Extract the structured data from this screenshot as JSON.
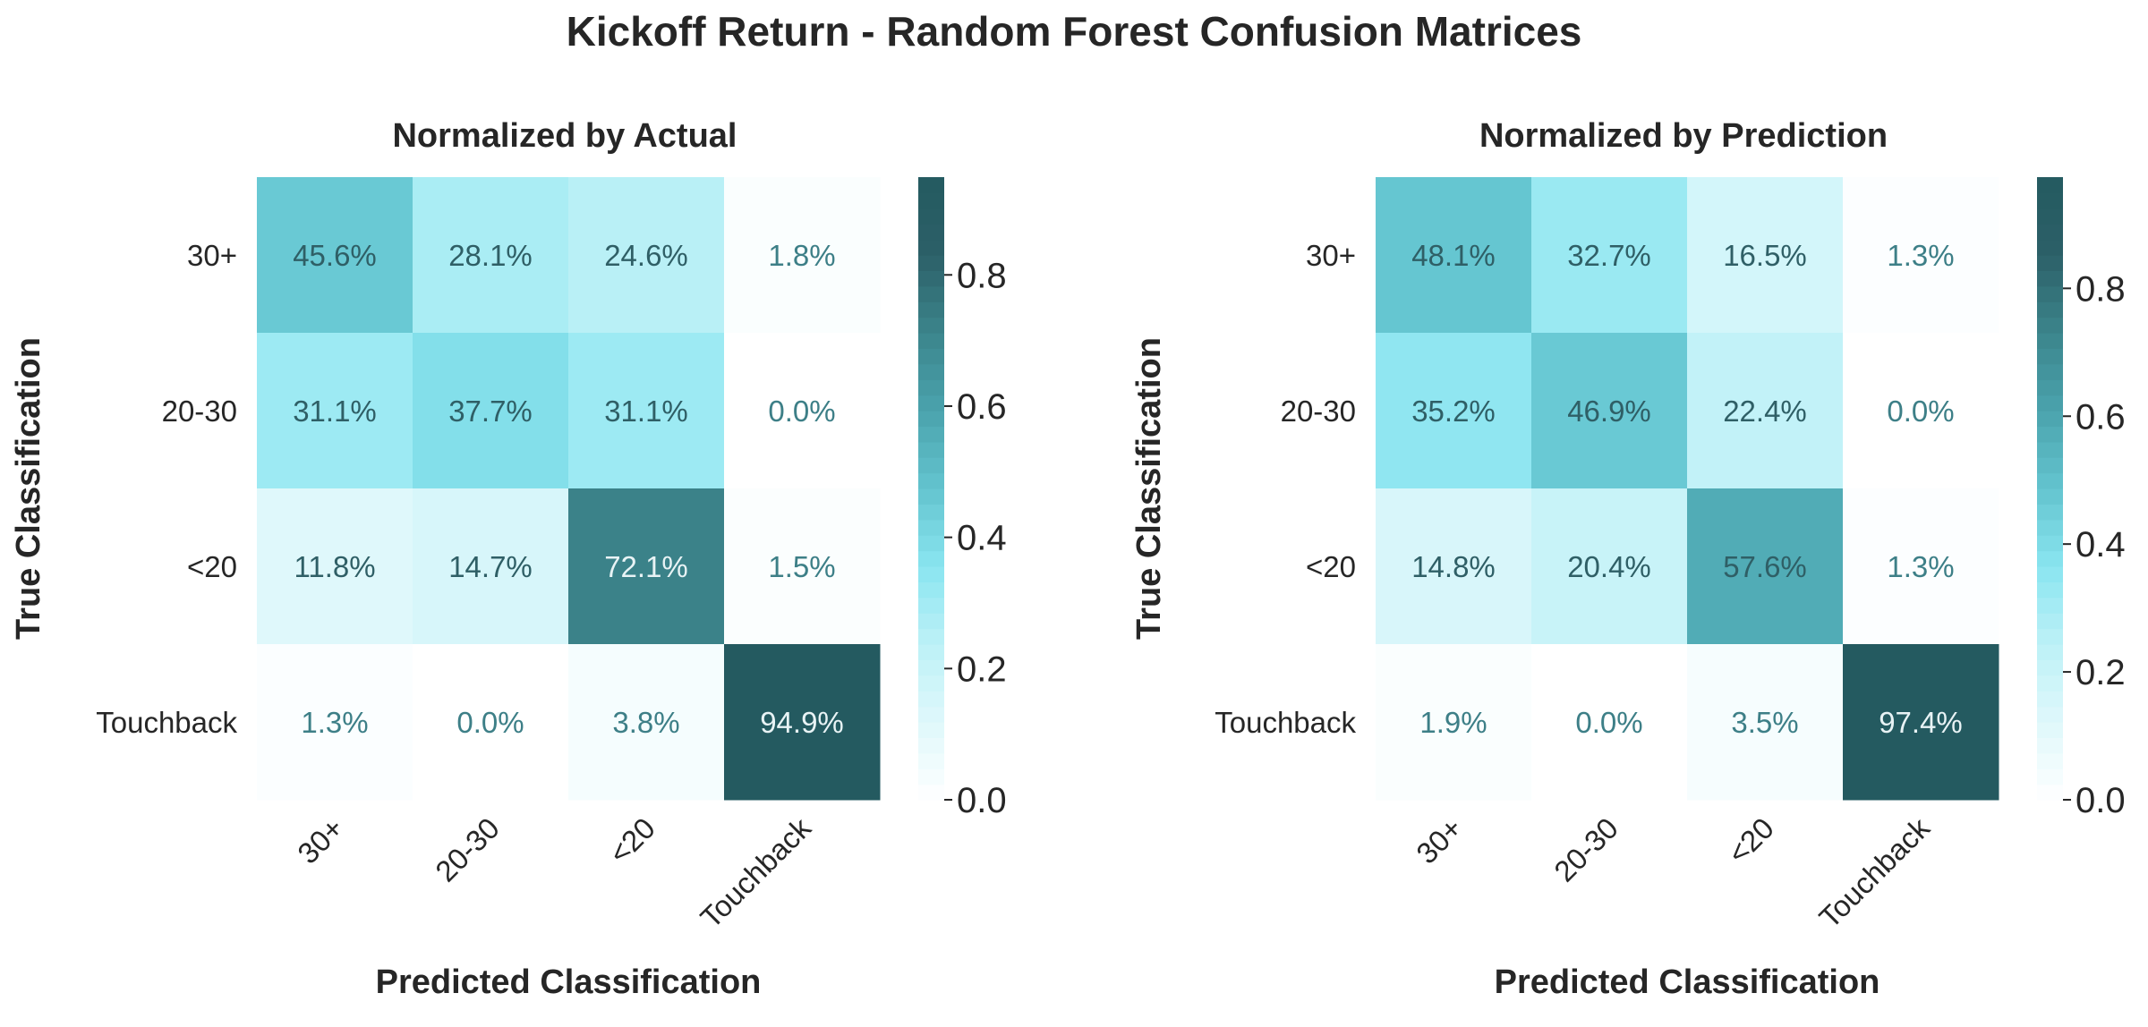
{
  "figure": {
    "title": "Kickoff Return - Random Forest Confusion Matrices"
  },
  "colors": {
    "cmap": [
      "#ffffff",
      "#dff8fb",
      "#bdf1f7",
      "#8ae5f0",
      "#63c4cf",
      "#4aa3ad",
      "#3c858c",
      "#2c6068",
      "#245a60"
    ],
    "text_dark": "#262626",
    "annot_light": "#e8f3f5",
    "annot_teal": "#3d7f87"
  },
  "chart_data": [
    {
      "type": "heatmap",
      "title": "Normalized by Actual",
      "xlabel": "Predicted Classification",
      "ylabel": "True Classification",
      "x_categories": [
        "30+",
        "20-30",
        "<20",
        "Touchback"
      ],
      "y_categories": [
        "30+",
        "20-30",
        "<20",
        "Touchback"
      ],
      "values": [
        [
          0.456,
          0.281,
          0.246,
          0.018
        ],
        [
          0.311,
          0.377,
          0.311,
          0.0
        ],
        [
          0.118,
          0.147,
          0.721,
          0.015
        ],
        [
          0.013,
          0.0,
          0.038,
          0.949
        ]
      ],
      "annotations": [
        [
          "45.6%",
          "28.1%",
          "24.6%",
          "1.8%"
        ],
        [
          "31.1%",
          "37.7%",
          "31.1%",
          "0.0%"
        ],
        [
          "11.8%",
          "14.7%",
          "72.1%",
          "1.5%"
        ],
        [
          "1.3%",
          "0.0%",
          "3.8%",
          "94.9%"
        ]
      ],
      "colorbar": {
        "vmin": 0.0,
        "vmax": 0.949,
        "ticks": [
          0.0,
          0.2,
          0.4,
          0.6,
          0.8
        ],
        "tick_labels": [
          "0.0",
          "0.2",
          "0.4",
          "0.6",
          "0.8"
        ]
      }
    },
    {
      "type": "heatmap",
      "title": "Normalized by Prediction",
      "xlabel": "Predicted Classification",
      "ylabel": "True Classification",
      "x_categories": [
        "30+",
        "20-30",
        "<20",
        "Touchback"
      ],
      "y_categories": [
        "30+",
        "20-30",
        "<20",
        "Touchback"
      ],
      "values": [
        [
          0.481,
          0.327,
          0.165,
          0.013
        ],
        [
          0.352,
          0.469,
          0.224,
          0.0
        ],
        [
          0.148,
          0.204,
          0.576,
          0.013
        ],
        [
          0.019,
          0.0,
          0.035,
          0.974
        ]
      ],
      "annotations": [
        [
          "48.1%",
          "32.7%",
          "16.5%",
          "1.3%"
        ],
        [
          "35.2%",
          "46.9%",
          "22.4%",
          "0.0%"
        ],
        [
          "14.8%",
          "20.4%",
          "57.6%",
          "1.3%"
        ],
        [
          "1.9%",
          "0.0%",
          "3.5%",
          "97.4%"
        ]
      ],
      "colorbar": {
        "vmin": 0.0,
        "vmax": 0.974,
        "ticks": [
          0.0,
          0.2,
          0.4,
          0.6,
          0.8
        ],
        "tick_labels": [
          "0.0",
          "0.2",
          "0.4",
          "0.6",
          "0.8"
        ]
      }
    }
  ]
}
